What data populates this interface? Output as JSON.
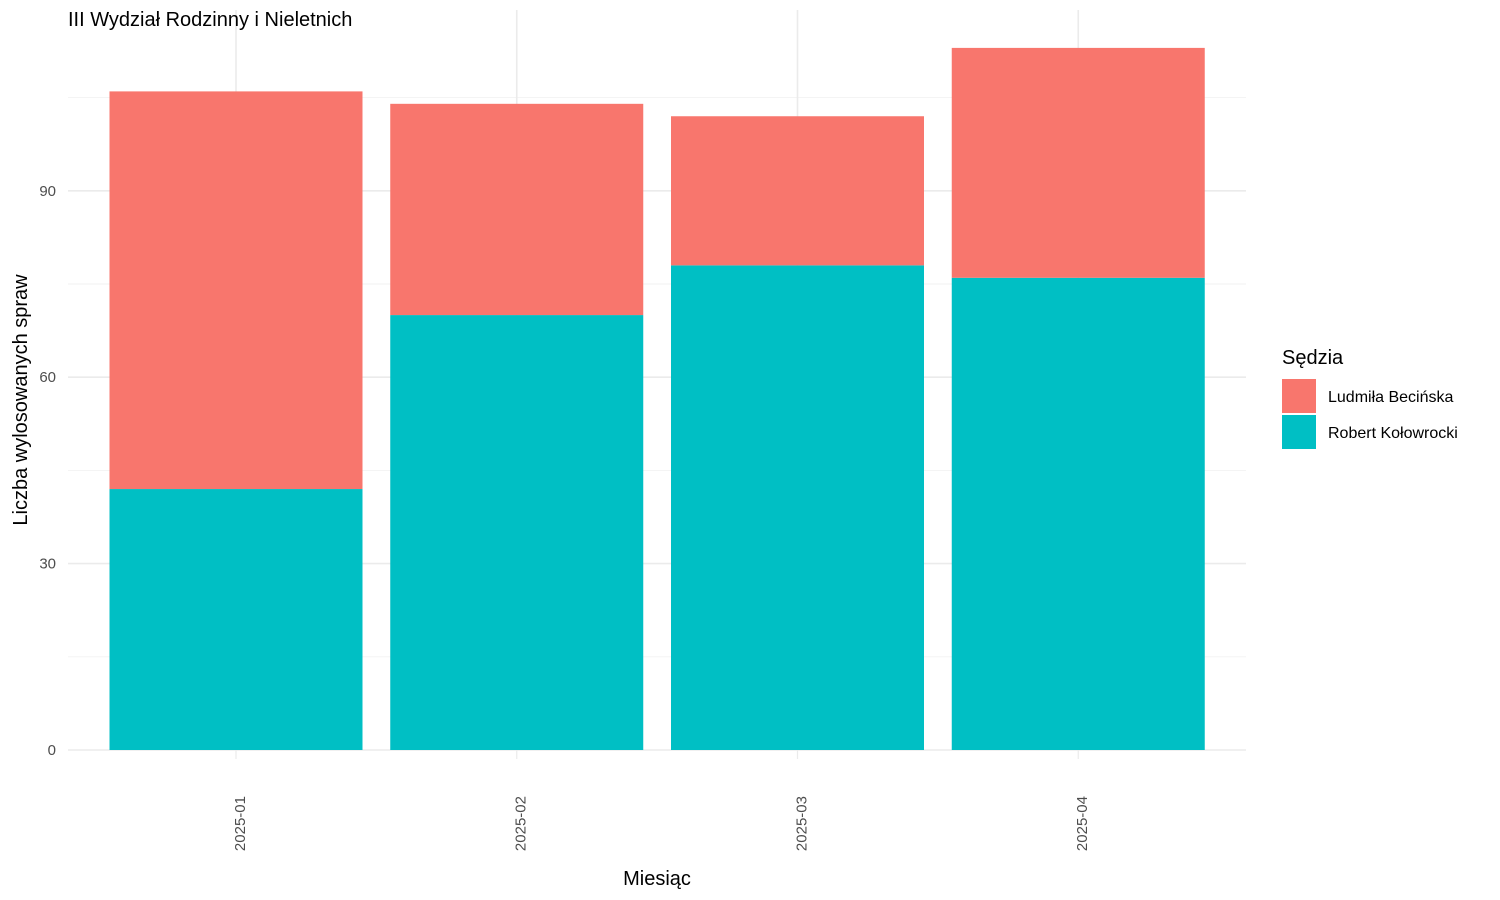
{
  "chart_data": {
    "type": "bar",
    "stacked": true,
    "title": "III Wydział Rodzinny i Nieletnich",
    "xlabel": "Miesiąc",
    "ylabel": "Liczba wylosowanych spraw",
    "categories": [
      "2025-01",
      "2025-02",
      "2025-03",
      "2025-04"
    ],
    "series": [
      {
        "name": "Robert Kołowrocki",
        "values": [
          42,
          70,
          78,
          76
        ],
        "color": "#00BFC4"
      },
      {
        "name": "Ludmiła Becińska",
        "values": [
          64,
          34,
          24,
          37
        ],
        "color": "#F8766D"
      }
    ],
    "yticks": [
      0,
      30,
      60,
      90
    ],
    "ylim": [
      0,
      114
    ],
    "grid": true,
    "legend": {
      "title": "Sędzia",
      "position": "right",
      "order": [
        "Ludmiła Becińska",
        "Robert Kołowrocki"
      ]
    }
  }
}
